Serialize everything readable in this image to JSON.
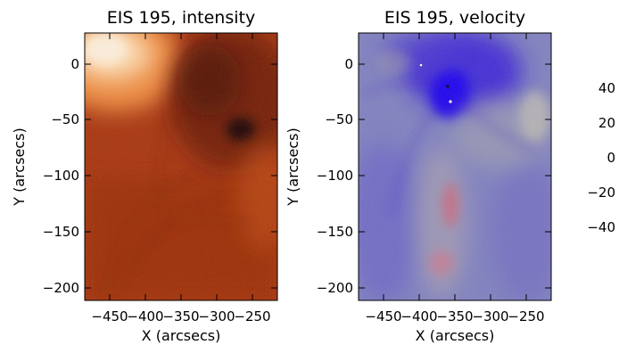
{
  "panels": [
    {
      "title": "EIS 195, intensity",
      "xlabel": "X (arcsecs)",
      "ylabel": "Y (arcsecs)",
      "xticks": [
        "−450",
        "−400",
        "−350",
        "−300",
        "−250"
      ],
      "yticks": [
        "0",
        "−50",
        "−100",
        "−150",
        "−200"
      ],
      "colormap": "red-temperature",
      "colors": {
        "dark": "#3a0500",
        "mid": "#b83a06",
        "bright": "#ffe8c8"
      }
    },
    {
      "title": "EIS 195, velocity",
      "xlabel": "X (arcsecs)",
      "ylabel": "Y (arcsecs)",
      "xticks": [
        "−450",
        "−400",
        "−350",
        "−300",
        "−250"
      ],
      "yticks": [
        "0",
        "−50",
        "−100",
        "−150",
        "−200"
      ],
      "colormap": "blue-white-red",
      "colors": {
        "blue": "#2a12e0",
        "neutral": "#9a9aaa",
        "red": "#d06a7a"
      }
    }
  ],
  "colorbar": {
    "ticks": [
      "40",
      "20",
      "0",
      "−20",
      "−40"
    ]
  }
}
